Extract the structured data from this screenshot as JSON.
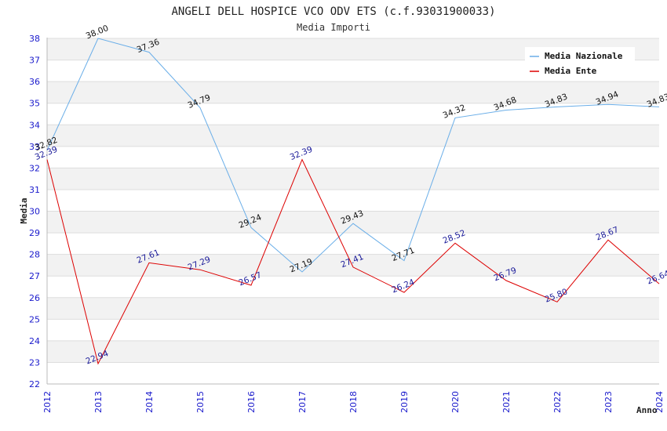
{
  "chart_data": {
    "type": "line",
    "title": "ANGELI DELL HOSPICE VCO ODV ETS (c.f.93031900033)",
    "subtitle": "Media Importi",
    "xlabel": "Anno",
    "ylabel": "Media",
    "x": [
      "2012",
      "2013",
      "2014",
      "2015",
      "2016",
      "2017",
      "2018",
      "2019",
      "2020",
      "2021",
      "2022",
      "2023",
      "2024"
    ],
    "ylim": [
      22,
      38
    ],
    "yticks": [
      "22",
      "23",
      "24",
      "25",
      "26",
      "27",
      "28",
      "29",
      "30",
      "31",
      "32",
      "33",
      "34",
      "35",
      "36",
      "37",
      "38"
    ],
    "grid": "horizontal-bands",
    "legend_position": "top-right",
    "series": [
      {
        "name": "Media Nazionale",
        "color": "#6aaee8",
        "label_color": "#111111",
        "values": [
          32.82,
          38.0,
          37.36,
          34.79,
          29.24,
          27.19,
          29.43,
          27.71,
          34.32,
          34.68,
          34.83,
          34.94,
          34.83
        ],
        "labels": [
          "32.82",
          "38.00",
          "37.36",
          "34.79",
          "29.24",
          "27.19",
          "29.43",
          "27.71",
          "34.32",
          "34.68",
          "34.83",
          "34.94",
          "34.83"
        ]
      },
      {
        "name": "Media Ente",
        "color": "#dd0000",
        "label_color": "#1a1a99",
        "values": [
          32.39,
          22.94,
          27.61,
          27.29,
          26.57,
          32.39,
          27.41,
          26.24,
          28.52,
          26.79,
          25.8,
          28.67,
          26.64
        ],
        "labels": [
          "32.39",
          "22.94",
          "27.61",
          "27.29",
          "26.57",
          "32.39",
          "27.41",
          "26.24",
          "28.52",
          "26.79",
          "25.80",
          "28.67",
          "26.64"
        ]
      }
    ]
  }
}
